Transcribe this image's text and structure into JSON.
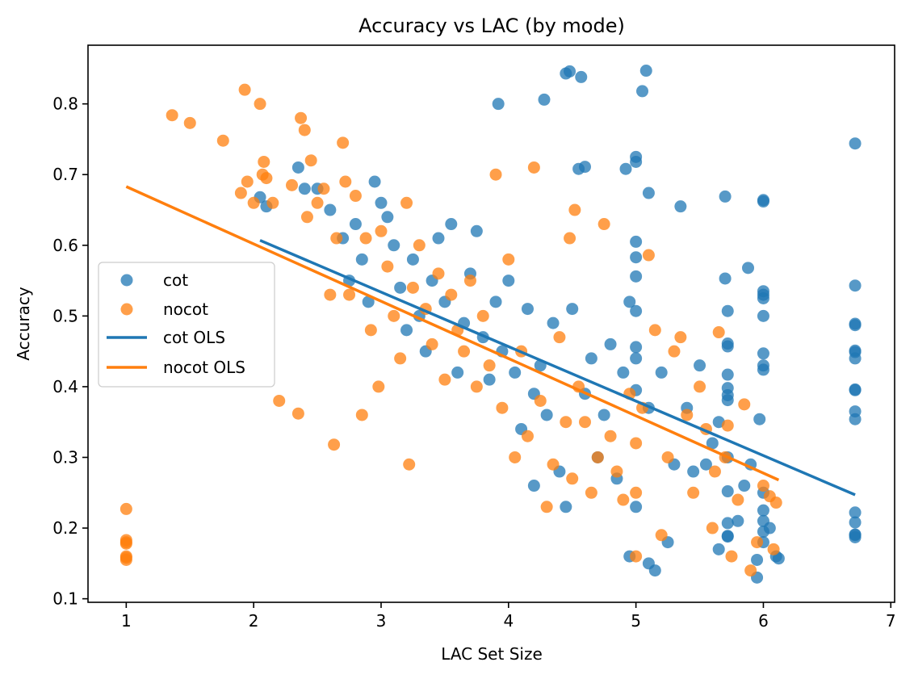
{
  "chart_data": {
    "type": "scatter",
    "title": "Accuracy vs LAC (by mode)",
    "xlabel": "LAC Set Size",
    "ylabel": "Accuracy",
    "xlim": [
      0.7,
      7.03
    ],
    "ylim": [
      0.095,
      0.883
    ],
    "x_ticks": [
      1,
      2,
      3,
      4,
      5,
      6,
      7
    ],
    "y_ticks": [
      0.1,
      0.2,
      0.3,
      0.4,
      0.5,
      0.6,
      0.7,
      0.8
    ],
    "x_tick_labels": [
      "1",
      "2",
      "3",
      "4",
      "5",
      "6",
      "7"
    ],
    "y_tick_labels": [
      "0.1",
      "0.2",
      "0.3",
      "0.4",
      "0.5",
      "0.6",
      "0.7",
      "0.8"
    ],
    "legend": {
      "placement": "center-left",
      "entries": [
        {
          "label": "cot",
          "kind": "marker",
          "color": "#1f77b4"
        },
        {
          "label": "nocot",
          "kind": "marker",
          "color": "#ff7f0e"
        },
        {
          "label": "cot OLS",
          "kind": "line",
          "color": "#1f77b4"
        },
        {
          "label": "nocot OLS",
          "kind": "line",
          "color": "#ff7f0e"
        }
      ]
    },
    "series": [
      {
        "name": "cot",
        "color": "#1f77b4",
        "alpha": 0.75,
        "points": [
          [
            2.05,
            0.668
          ],
          [
            2.1,
            0.655
          ],
          [
            2.35,
            0.71
          ],
          [
            2.4,
            0.68
          ],
          [
            2.5,
            0.68
          ],
          [
            2.6,
            0.65
          ],
          [
            2.7,
            0.61
          ],
          [
            2.75,
            0.55
          ],
          [
            2.8,
            0.63
          ],
          [
            2.85,
            0.58
          ],
          [
            2.9,
            0.52
          ],
          [
            2.95,
            0.69
          ],
          [
            3.0,
            0.66
          ],
          [
            3.05,
            0.64
          ],
          [
            3.1,
            0.6
          ],
          [
            3.15,
            0.54
          ],
          [
            3.2,
            0.48
          ],
          [
            3.25,
            0.58
          ],
          [
            3.3,
            0.5
          ],
          [
            3.35,
            0.45
          ],
          [
            3.4,
            0.55
          ],
          [
            3.45,
            0.61
          ],
          [
            3.5,
            0.52
          ],
          [
            3.55,
            0.63
          ],
          [
            3.6,
            0.42
          ],
          [
            3.65,
            0.49
          ],
          [
            3.7,
            0.56
          ],
          [
            3.75,
            0.62
          ],
          [
            3.8,
            0.47
          ],
          [
            3.85,
            0.41
          ],
          [
            3.9,
            0.52
          ],
          [
            3.95,
            0.45
          ],
          [
            3.92,
            0.8
          ],
          [
            4.0,
            0.55
          ],
          [
            4.05,
            0.42
          ],
          [
            4.1,
            0.34
          ],
          [
            4.15,
            0.51
          ],
          [
            4.2,
            0.39
          ],
          [
            4.2,
            0.26
          ],
          [
            4.25,
            0.43
          ],
          [
            4.28,
            0.806
          ],
          [
            4.3,
            0.36
          ],
          [
            4.35,
            0.49
          ],
          [
            4.4,
            0.28
          ],
          [
            4.45,
            0.23
          ],
          [
            4.45,
            0.843
          ],
          [
            4.48,
            0.846
          ],
          [
            4.5,
            0.51
          ],
          [
            4.55,
            0.708
          ],
          [
            4.57,
            0.838
          ],
          [
            4.6,
            0.711
          ],
          [
            4.6,
            0.39
          ],
          [
            4.65,
            0.44
          ],
          [
            4.7,
            0.3
          ],
          [
            4.75,
            0.36
          ],
          [
            4.8,
            0.46
          ],
          [
            4.85,
            0.27
          ],
          [
            4.9,
            0.42
          ],
          [
            4.92,
            0.708
          ],
          [
            4.95,
            0.52
          ],
          [
            4.95,
            0.16
          ],
          [
            5.0,
            0.725
          ],
          [
            5.0,
            0.718
          ],
          [
            5.0,
            0.605
          ],
          [
            5.0,
            0.583
          ],
          [
            5.0,
            0.556
          ],
          [
            5.0,
            0.507
          ],
          [
            5.0,
            0.456
          ],
          [
            5.0,
            0.44
          ],
          [
            5.0,
            0.395
          ],
          [
            5.0,
            0.23
          ],
          [
            5.05,
            0.818
          ],
          [
            5.08,
            0.847
          ],
          [
            5.1,
            0.674
          ],
          [
            5.1,
            0.37
          ],
          [
            5.1,
            0.15
          ],
          [
            5.15,
            0.14
          ],
          [
            5.2,
            0.42
          ],
          [
            5.25,
            0.18
          ],
          [
            5.3,
            0.29
          ],
          [
            5.35,
            0.655
          ],
          [
            5.4,
            0.37
          ],
          [
            5.45,
            0.28
          ],
          [
            5.5,
            0.43
          ],
          [
            5.55,
            0.29
          ],
          [
            5.6,
            0.32
          ],
          [
            5.65,
            0.35
          ],
          [
            5.65,
            0.17
          ],
          [
            5.7,
            0.669
          ],
          [
            5.7,
            0.553
          ],
          [
            5.72,
            0.507
          ],
          [
            5.72,
            0.461
          ],
          [
            5.72,
            0.457
          ],
          [
            5.72,
            0.417
          ],
          [
            5.72,
            0.398
          ],
          [
            5.72,
            0.388
          ],
          [
            5.72,
            0.381
          ],
          [
            5.72,
            0.3
          ],
          [
            5.72,
            0.252
          ],
          [
            5.72,
            0.207
          ],
          [
            5.72,
            0.189
          ],
          [
            5.72,
            0.188
          ],
          [
            5.8,
            0.21
          ],
          [
            5.85,
            0.26
          ],
          [
            5.88,
            0.568
          ],
          [
            5.9,
            0.29
          ],
          [
            5.95,
            0.13
          ],
          [
            5.95,
            0.155
          ],
          [
            5.97,
            0.354
          ],
          [
            6.0,
            0.664
          ],
          [
            6.0,
            0.662
          ],
          [
            6.0,
            0.535
          ],
          [
            6.0,
            0.53
          ],
          [
            6.0,
            0.525
          ],
          [
            6.0,
            0.5
          ],
          [
            6.0,
            0.447
          ],
          [
            6.0,
            0.43
          ],
          [
            6.0,
            0.424
          ],
          [
            6.0,
            0.25
          ],
          [
            6.0,
            0.225
          ],
          [
            6.0,
            0.21
          ],
          [
            6.0,
            0.195
          ],
          [
            6.0,
            0.18
          ],
          [
            6.05,
            0.2
          ],
          [
            6.1,
            0.16
          ],
          [
            6.12,
            0.157
          ],
          [
            6.72,
            0.744
          ],
          [
            6.72,
            0.543
          ],
          [
            6.72,
            0.489
          ],
          [
            6.72,
            0.487
          ],
          [
            6.72,
            0.451
          ],
          [
            6.72,
            0.449
          ],
          [
            6.72,
            0.44
          ],
          [
            6.72,
            0.396
          ],
          [
            6.72,
            0.395
          ],
          [
            6.72,
            0.365
          ],
          [
            6.72,
            0.354
          ],
          [
            6.72,
            0.222
          ],
          [
            6.72,
            0.208
          ],
          [
            6.72,
            0.191
          ],
          [
            6.72,
            0.19
          ],
          [
            6.72,
            0.187
          ]
        ]
      },
      {
        "name": "nocot",
        "color": "#ff7f0e",
        "alpha": 0.75,
        "points": [
          [
            1.0,
            0.227
          ],
          [
            1.0,
            0.183
          ],
          [
            1.0,
            0.18
          ],
          [
            1.0,
            0.178
          ],
          [
            1.0,
            0.16
          ],
          [
            1.0,
            0.158
          ],
          [
            1.0,
            0.155
          ],
          [
            1.36,
            0.784
          ],
          [
            1.5,
            0.773
          ],
          [
            1.76,
            0.748
          ],
          [
            1.9,
            0.674
          ],
          [
            1.93,
            0.82
          ],
          [
            1.95,
            0.69
          ],
          [
            2.0,
            0.66
          ],
          [
            2.05,
            0.8
          ],
          [
            2.07,
            0.7
          ],
          [
            2.08,
            0.718
          ],
          [
            2.1,
            0.695
          ],
          [
            2.15,
            0.66
          ],
          [
            2.2,
            0.38
          ],
          [
            2.3,
            0.685
          ],
          [
            2.35,
            0.362
          ],
          [
            2.37,
            0.78
          ],
          [
            2.4,
            0.763
          ],
          [
            2.42,
            0.64
          ],
          [
            2.45,
            0.72
          ],
          [
            2.5,
            0.66
          ],
          [
            2.55,
            0.68
          ],
          [
            2.6,
            0.53
          ],
          [
            2.63,
            0.318
          ],
          [
            2.65,
            0.61
          ],
          [
            2.7,
            0.745
          ],
          [
            2.72,
            0.69
          ],
          [
            2.75,
            0.53
          ],
          [
            2.8,
            0.67
          ],
          [
            2.85,
            0.36
          ],
          [
            2.88,
            0.61
          ],
          [
            2.92,
            0.48
          ],
          [
            2.98,
            0.4
          ],
          [
            3.0,
            0.62
          ],
          [
            3.05,
            0.57
          ],
          [
            3.1,
            0.5
          ],
          [
            3.15,
            0.44
          ],
          [
            3.2,
            0.66
          ],
          [
            3.22,
            0.29
          ],
          [
            3.25,
            0.54
          ],
          [
            3.3,
            0.6
          ],
          [
            3.35,
            0.51
          ],
          [
            3.4,
            0.46
          ],
          [
            3.45,
            0.56
          ],
          [
            3.5,
            0.41
          ],
          [
            3.55,
            0.53
          ],
          [
            3.6,
            0.48
          ],
          [
            3.65,
            0.45
          ],
          [
            3.7,
            0.55
          ],
          [
            3.75,
            0.4
          ],
          [
            3.8,
            0.5
          ],
          [
            3.85,
            0.43
          ],
          [
            3.9,
            0.7
          ],
          [
            3.95,
            0.37
          ],
          [
            4.0,
            0.58
          ],
          [
            4.05,
            0.3
          ],
          [
            4.1,
            0.45
          ],
          [
            4.15,
            0.33
          ],
          [
            4.2,
            0.71
          ],
          [
            4.25,
            0.38
          ],
          [
            4.3,
            0.23
          ],
          [
            4.35,
            0.29
          ],
          [
            4.4,
            0.47
          ],
          [
            4.45,
            0.35
          ],
          [
            4.48,
            0.61
          ],
          [
            4.5,
            0.27
          ],
          [
            4.52,
            0.65
          ],
          [
            4.55,
            0.4
          ],
          [
            4.6,
            0.35
          ],
          [
            4.65,
            0.25
          ],
          [
            4.7,
            0.3
          ],
          [
            4.75,
            0.63
          ],
          [
            4.8,
            0.33
          ],
          [
            4.85,
            0.28
          ],
          [
            4.9,
            0.24
          ],
          [
            4.95,
            0.39
          ],
          [
            5.0,
            0.32
          ],
          [
            5.0,
            0.25
          ],
          [
            5.0,
            0.16
          ],
          [
            5.05,
            0.37
          ],
          [
            5.1,
            0.586
          ],
          [
            5.15,
            0.48
          ],
          [
            5.2,
            0.19
          ],
          [
            5.25,
            0.3
          ],
          [
            5.3,
            0.45
          ],
          [
            5.35,
            0.47
          ],
          [
            5.4,
            0.36
          ],
          [
            5.45,
            0.25
          ],
          [
            5.5,
            0.4
          ],
          [
            5.55,
            0.34
          ],
          [
            5.6,
            0.2
          ],
          [
            5.62,
            0.28
          ],
          [
            5.65,
            0.477
          ],
          [
            5.7,
            0.3
          ],
          [
            5.72,
            0.345
          ],
          [
            5.75,
            0.16
          ],
          [
            5.8,
            0.24
          ],
          [
            5.85,
            0.375
          ],
          [
            5.9,
            0.14
          ],
          [
            5.95,
            0.18
          ],
          [
            6.0,
            0.26
          ],
          [
            6.05,
            0.245
          ],
          [
            6.08,
            0.17
          ],
          [
            6.1,
            0.236
          ]
        ]
      }
    ],
    "fits": [
      {
        "name": "cot OLS",
        "color": "#1f77b4",
        "x": [
          2.05,
          6.72
        ],
        "y": [
          0.607,
          0.247
        ]
      },
      {
        "name": "nocot OLS",
        "color": "#ff7f0e",
        "x": [
          1.0,
          6.12
        ],
        "y": [
          0.683,
          0.268
        ]
      }
    ]
  }
}
